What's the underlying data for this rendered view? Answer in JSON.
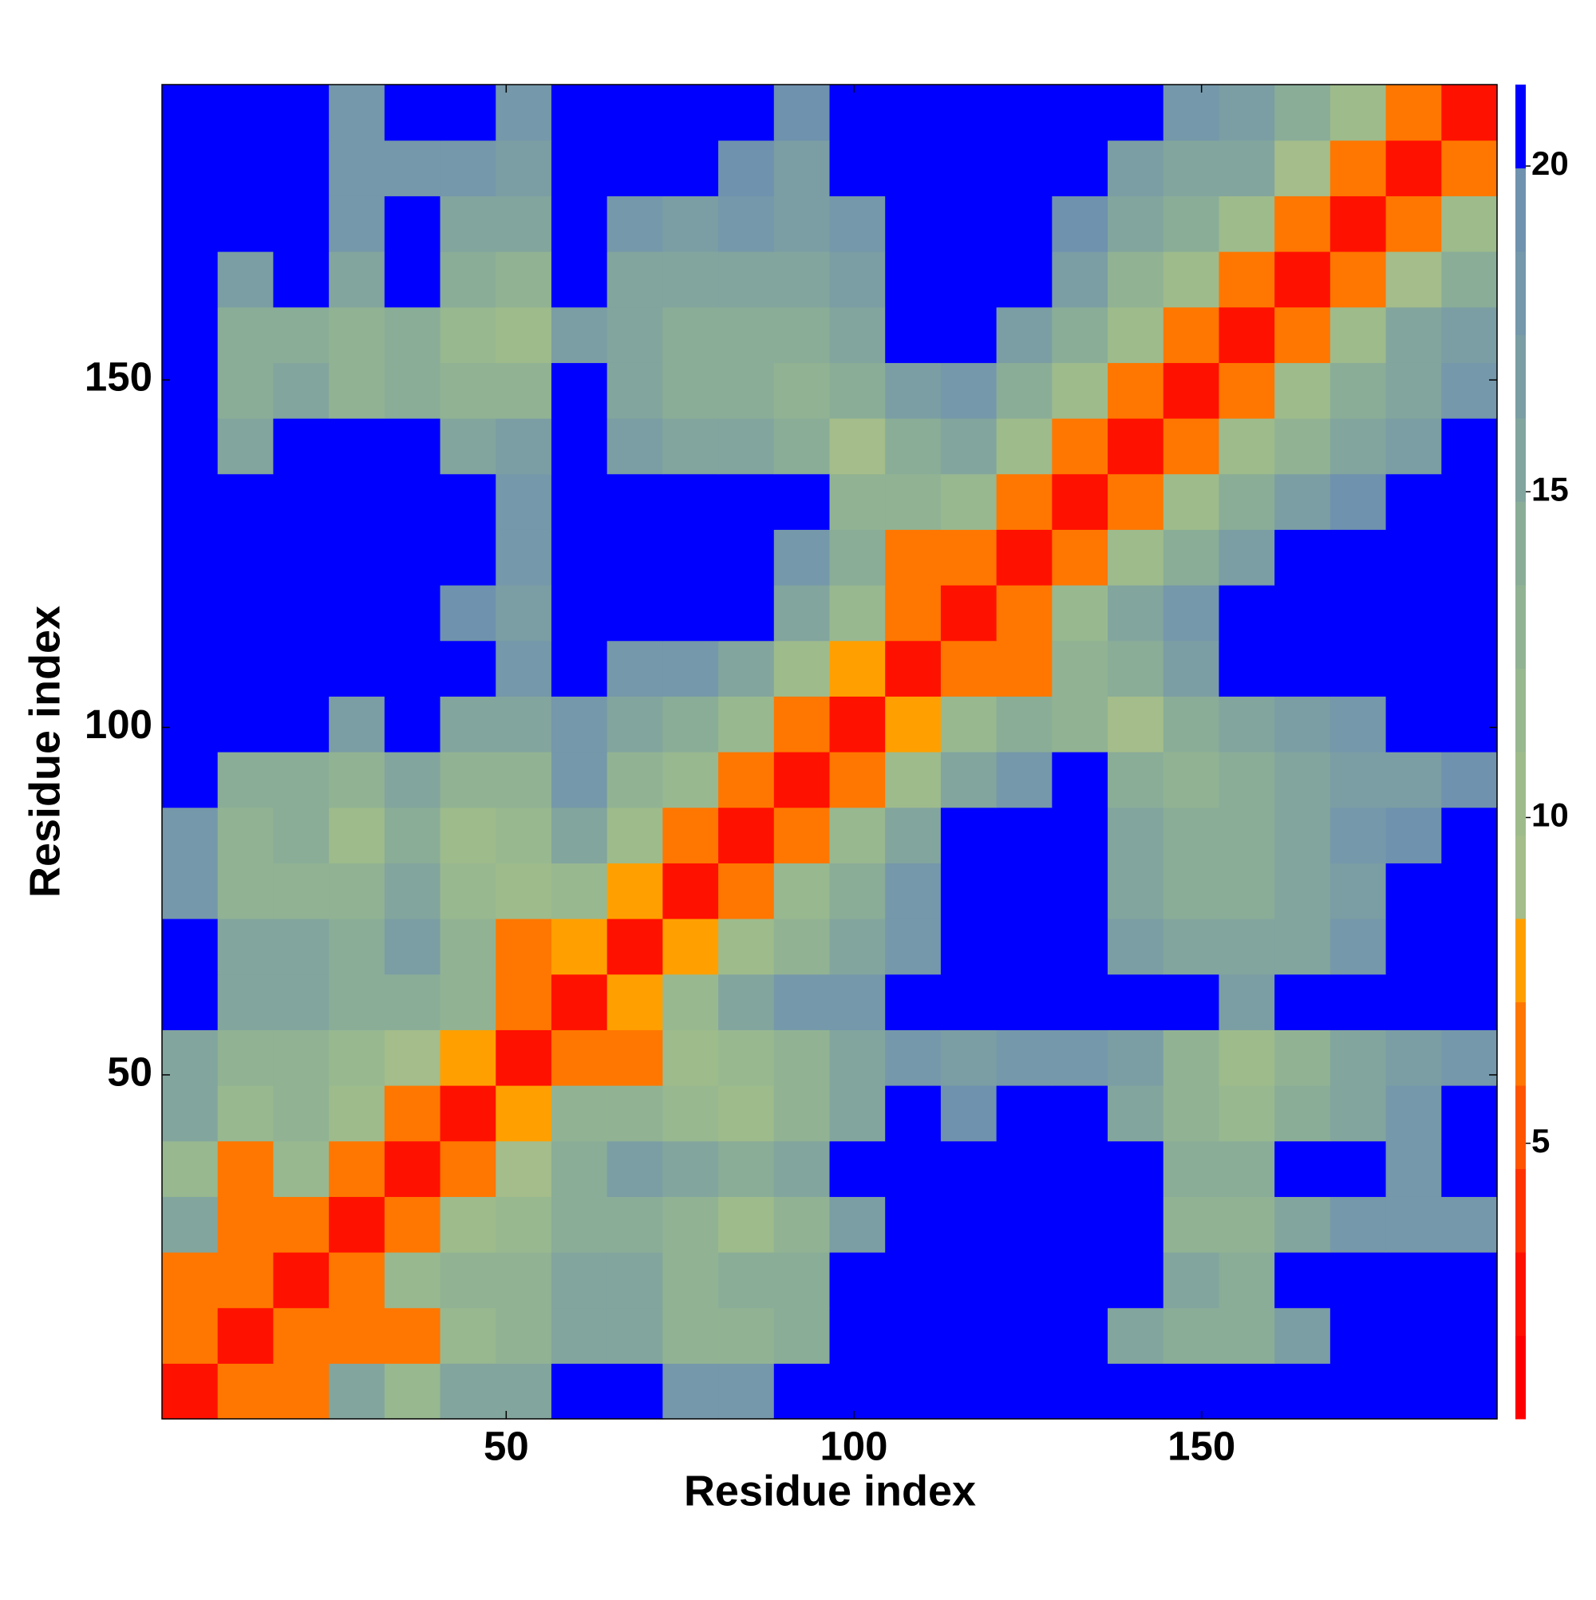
{
  "chart_data": {
    "type": "heatmap",
    "x_label": "Residue index",
    "y_label": "Residue index",
    "xbins": [
      0.5,
      8.5,
      16.5,
      24.5,
      32.5,
      40.5,
      48.5,
      56.5,
      64.5,
      72.5,
      80.5,
      88.5,
      96.5,
      104.5,
      112.5,
      120.5,
      128.5,
      136.5,
      144.5,
      152.5,
      160.5,
      168.5,
      176.5,
      184.5,
      192.5
    ],
    "ybins": [
      0.5,
      8.5,
      16.5,
      24.5,
      32.5,
      40.5,
      48.5,
      56.5,
      64.5,
      72.5,
      80.5,
      88.5,
      96.5,
      104.5,
      112.5,
      120.5,
      128.5,
      136.5,
      144.5,
      152.5,
      160.5,
      168.5,
      176.5,
      184.5,
      192.5
    ],
    "xlim": [
      0.5,
      192.5
    ],
    "ylim": [
      0.5,
      192.5
    ],
    "xticks": [
      50,
      100,
      150
    ],
    "yticks": [
      50,
      100,
      150
    ],
    "z": [
      [
        3,
        7,
        7,
        16,
        12,
        15,
        16,
        21,
        21,
        18,
        18,
        21,
        21,
        21,
        21,
        21,
        21,
        21,
        21,
        21,
        21,
        21,
        21,
        21
      ],
      [
        7,
        3,
        7,
        7,
        7,
        12,
        13,
        16,
        15,
        13,
        13,
        14,
        21,
        21,
        21,
        21,
        21,
        16,
        14,
        14,
        17,
        21,
        21,
        21
      ],
      [
        7,
        7,
        3,
        6,
        12,
        13,
        13,
        15,
        15,
        13,
        14,
        14,
        21,
        21,
        21,
        21,
        21,
        21,
        15,
        14,
        21,
        21,
        21,
        21
      ],
      [
        16,
        7,
        6,
        3,
        7,
        10,
        12,
        14,
        14,
        13,
        11,
        13,
        17,
        21,
        21,
        21,
        21,
        21,
        13,
        13,
        16,
        18,
        18,
        18
      ],
      [
        12,
        7,
        12,
        7,
        3,
        6,
        9,
        14,
        17,
        15,
        14,
        16,
        21,
        21,
        21,
        21,
        21,
        21,
        14,
        14,
        21,
        21,
        18,
        21
      ],
      [
        15,
        12,
        13,
        10,
        6,
        3,
        8,
        13,
        13,
        12,
        11,
        13,
        15,
        21,
        19,
        21,
        21,
        15,
        13,
        12,
        14,
        16,
        18,
        21
      ],
      [
        16,
        13,
        13,
        12,
        9,
        8,
        3,
        7,
        7,
        11,
        12,
        13,
        15,
        18,
        17,
        18,
        18,
        17,
        13,
        11,
        13,
        15,
        17,
        18
      ],
      [
        21,
        16,
        15,
        14,
        14,
        13,
        7,
        3,
        8,
        12,
        16,
        18,
        18,
        21,
        21,
        21,
        21,
        21,
        21,
        17,
        21,
        21,
        21,
        21
      ],
      [
        21,
        15,
        15,
        14,
        17,
        13,
        7,
        8,
        3,
        8,
        11,
        13,
        15,
        18,
        21,
        21,
        21,
        17,
        15,
        15,
        16,
        18,
        21,
        21
      ],
      [
        18,
        13,
        13,
        13,
        15,
        12,
        11,
        12,
        8,
        3,
        7,
        12,
        14,
        18,
        21,
        21,
        21,
        16,
        14,
        14,
        15,
        17,
        21,
        21
      ],
      [
        18,
        13,
        14,
        11,
        14,
        11,
        12,
        16,
        11,
        7,
        3,
        6,
        12,
        16,
        21,
        21,
        21,
        15,
        14,
        14,
        16,
        18,
        19,
        21
      ],
      [
        21,
        14,
        14,
        13,
        16,
        13,
        13,
        18,
        13,
        12,
        6,
        3,
        7,
        11,
        15,
        18,
        21,
        14,
        13,
        14,
        16,
        17,
        17,
        19
      ],
      [
        21,
        21,
        21,
        17,
        21,
        15,
        15,
        18,
        15,
        14,
        12,
        7,
        3,
        8,
        12,
        14,
        13,
        9,
        14,
        15,
        17,
        18,
        21,
        21
      ],
      [
        21,
        21,
        21,
        21,
        21,
        21,
        18,
        21,
        18,
        18,
        16,
        11,
        8,
        3,
        7,
        7,
        13,
        14,
        17,
        21,
        21,
        21,
        21,
        21
      ],
      [
        21,
        21,
        21,
        21,
        21,
        19,
        17,
        21,
        21,
        21,
        21,
        15,
        12,
        7,
        3,
        7,
        12,
        16,
        18,
        21,
        21,
        21,
        21,
        21
      ],
      [
        21,
        21,
        21,
        21,
        21,
        21,
        18,
        21,
        21,
        21,
        21,
        18,
        14,
        7,
        7,
        3,
        7,
        11,
        14,
        17,
        21,
        21,
        21,
        21
      ],
      [
        21,
        21,
        21,
        21,
        21,
        21,
        18,
        21,
        21,
        21,
        21,
        21,
        13,
        13,
        12,
        7,
        3,
        6,
        11,
        14,
        17,
        19,
        21,
        21
      ],
      [
        21,
        16,
        21,
        21,
        21,
        15,
        17,
        21,
        17,
        16,
        15,
        14,
        9,
        14,
        16,
        11,
        6,
        3,
        6,
        11,
        13,
        16,
        17,
        20
      ],
      [
        21,
        14,
        15,
        13,
        14,
        13,
        13,
        21,
        15,
        14,
        14,
        13,
        14,
        17,
        18,
        14,
        11,
        6,
        3,
        6,
        11,
        14,
        16,
        18
      ],
      [
        21,
        14,
        14,
        13,
        14,
        12,
        11,
        17,
        15,
        14,
        14,
        14,
        15,
        21,
        21,
        17,
        14,
        11,
        6,
        3,
        6,
        10,
        15,
        17
      ],
      [
        21,
        17,
        21,
        16,
        21,
        14,
        13,
        21,
        16,
        15,
        16,
        16,
        17,
        21,
        21,
        21,
        17,
        13,
        11,
        6,
        3,
        7,
        9,
        14
      ],
      [
        21,
        21,
        21,
        18,
        21,
        16,
        15,
        21,
        18,
        17,
        18,
        17,
        18,
        21,
        21,
        21,
        19,
        16,
        14,
        10,
        7,
        3,
        6,
        11
      ],
      [
        21,
        21,
        21,
        18,
        18,
        18,
        17,
        21,
        21,
        21,
        19,
        17,
        21,
        21,
        21,
        21,
        21,
        17,
        16,
        15,
        9,
        6,
        3,
        6
      ],
      [
        21,
        21,
        21,
        18,
        21,
        21,
        18,
        21,
        21,
        21,
        21,
        19,
        21,
        21,
        21,
        21,
        21,
        20,
        18,
        17,
        14,
        11,
        6,
        3
      ]
    ],
    "colorbar": {
      "levels": [
        0.77,
        2.05,
        3.33,
        4.61,
        5.89,
        7.17,
        8.45,
        9.73,
        11.01,
        12.29,
        13.57,
        14.85,
        16.13,
        17.41,
        18.69,
        19.97,
        21.25
      ],
      "colors": [
        "#ff0000",
        "#ff1100",
        "#ff3300",
        "#ff5500",
        "#ff7700",
        "#ffa000",
        "#a4bd8a",
        "#9ebb8c",
        "#98b890",
        "#91b393",
        "#8aad98",
        "#82a59e",
        "#7b9ea4",
        "#7598aa",
        "#6f92ae",
        "#0000ff"
      ],
      "ticks": [
        5,
        10,
        15,
        20
      ]
    }
  }
}
